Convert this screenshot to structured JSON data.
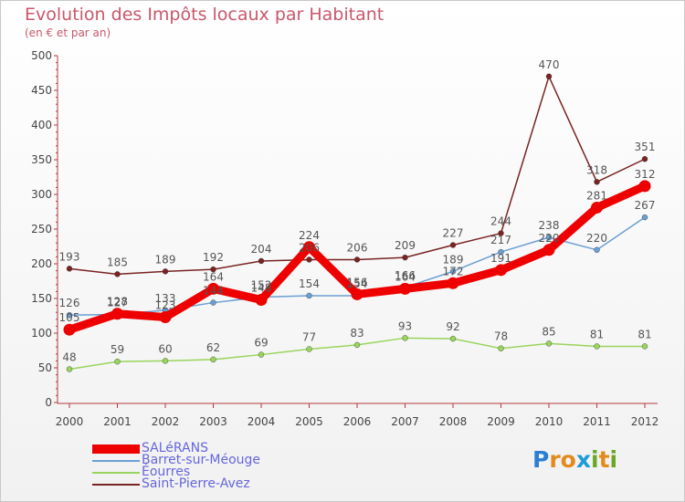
{
  "header": {
    "title": "Evolution des Impôts locaux par Habitant",
    "subtitle": "(en € et par an)"
  },
  "logo": {
    "letters": [
      "P",
      "r",
      "o",
      "x",
      "i",
      "t",
      "i"
    ],
    "colors": [
      "#2a7fd4",
      "#e48a1c",
      "#e48a1c",
      "#1e9bd7",
      "#6aa823",
      "#e48a1c",
      "#6aa823"
    ]
  },
  "chart_data": {
    "type": "line",
    "title": "Evolution des Impôts locaux par Habitant",
    "subtitle": "(en € et par an)",
    "xlabel": "",
    "ylabel": "",
    "ylim": [
      0,
      500
    ],
    "yticks": [
      0,
      50,
      100,
      150,
      200,
      250,
      300,
      350,
      400,
      450,
      500
    ],
    "categories": [
      "2000",
      "2001",
      "2002",
      "2003",
      "2004",
      "2005",
      "2006",
      "2007",
      "2008",
      "2009",
      "2010",
      "2011",
      "2012"
    ],
    "grid": false,
    "legend_position": "bottom-left",
    "series": [
      {
        "name": "SALéRANS",
        "color": "#ee0000",
        "width": 9,
        "values": [
          105,
          128,
          123,
          164,
          148,
          224,
          156,
          164,
          172,
          191,
          220,
          281,
          312
        ]
      },
      {
        "name": "Barret-sur-Méouge",
        "color": "#6b9fd2",
        "width": 1.5,
        "values": [
          126,
          127,
          133,
          144,
          152,
          154,
          154,
          166,
          189,
          217,
          238,
          220,
          267
        ]
      },
      {
        "name": "Éourres",
        "color": "#99d45c",
        "width": 1.5,
        "values": [
          48,
          59,
          60,
          62,
          69,
          77,
          83,
          93,
          92,
          78,
          85,
          81,
          81
        ]
      },
      {
        "name": "Saint-Pierre-Avez",
        "color": "#7a2323",
        "width": 1.5,
        "values": [
          193,
          185,
          189,
          192,
          204,
          206,
          206,
          209,
          227,
          244,
          470,
          318,
          351
        ]
      }
    ]
  }
}
